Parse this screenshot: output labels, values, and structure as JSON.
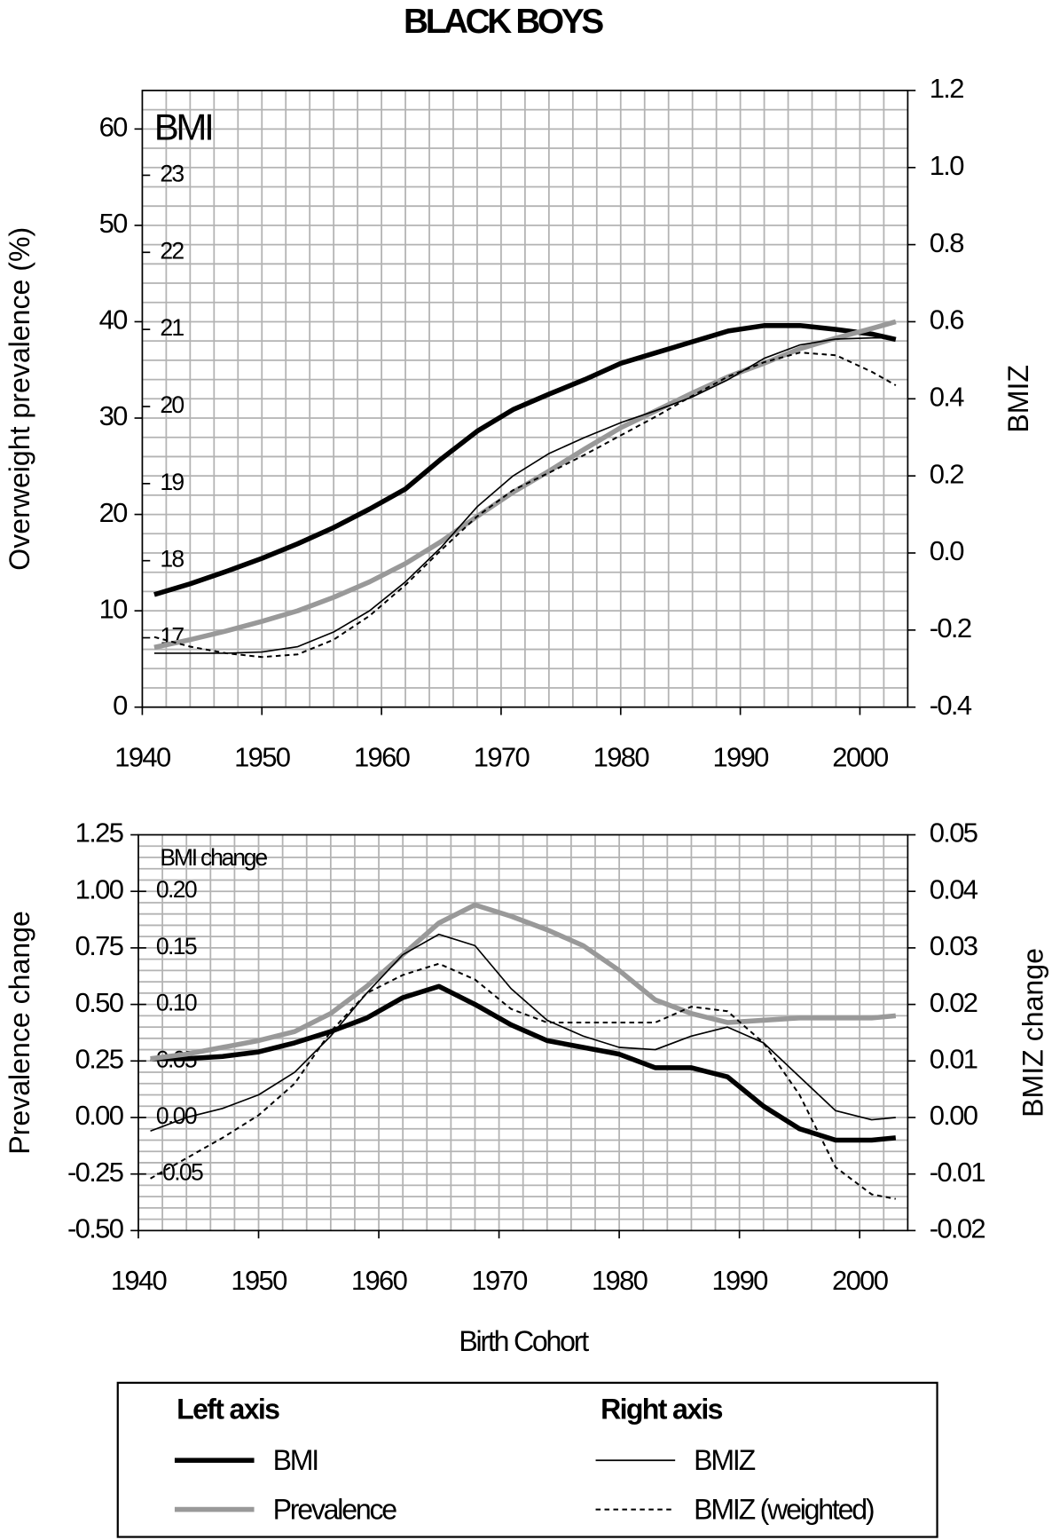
{
  "title": "BLACK BOYS",
  "legend": {
    "left_title": "Left axis",
    "right_title": "Right axis"
  },
  "chart_data": [
    {
      "type": "line",
      "ylabel": "Overweight prevalence (%)",
      "y2label": "BMIZ",
      "y3label": "BMI",
      "x": [
        1941,
        1944,
        1947,
        1950,
        1953,
        1956,
        1959,
        1962,
        1965,
        1968,
        1971,
        1974,
        1977,
        1980,
        1983,
        1986,
        1989,
        1992,
        1995,
        1998,
        2001,
        2003
      ],
      "xlim": [
        1940,
        2004
      ],
      "xticks": [
        1940,
        1950,
        1960,
        1970,
        1980,
        1990,
        2000
      ],
      "ylim": [
        0,
        64
      ],
      "yticks": [
        0,
        10,
        20,
        30,
        40,
        50,
        60
      ],
      "y2lim": [
        -0.4,
        1.2
      ],
      "y2ticks": [
        -0.4,
        -0.2,
        {
          "value": 0,
          "label": "0.0"
        },
        0.2,
        0.4,
        0.6,
        0.8,
        {
          "value": 1,
          "label": "1.0"
        },
        1.2
      ],
      "y3lim": [
        16.1,
        24.1
      ],
      "y3ticks": [
        17,
        18,
        19,
        20,
        21,
        22,
        23
      ],
      "grid": true,
      "grid_x_step": 2,
      "grid_y_step": 2,
      "series": [
        {
          "name": "BMI",
          "axis": "y3",
          "color": "#000000",
          "width": 5,
          "dash": false,
          "values": [
            17.56,
            17.7,
            17.86,
            18.03,
            18.22,
            18.43,
            18.67,
            18.93,
            19.32,
            19.68,
            19.96,
            20.16,
            20.35,
            20.56,
            20.7,
            20.84,
            20.98,
            21.05,
            21.05,
            21.0,
            20.94,
            20.87
          ]
        },
        {
          "name": "Prevalence",
          "axis": "y",
          "color": "#999999",
          "width": 5,
          "dash": false,
          "values": [
            6.2,
            7,
            7.9,
            8.9,
            10,
            11.4,
            13,
            14.9,
            17.2,
            19.8,
            22.3,
            24.5,
            26.8,
            29,
            30.8,
            32.6,
            34.3,
            35.7,
            37.2,
            38.3,
            39.3,
            40
          ]
        },
        {
          "name": "BMIZ",
          "axis": "y2",
          "color": "#000000",
          "width": 1.5,
          "dash": false,
          "values": [
            -0.26,
            -0.26,
            -0.26,
            -0.257,
            -0.243,
            -0.205,
            -0.15,
            -0.075,
            0.015,
            0.12,
            0.2,
            0.258,
            0.3,
            0.338,
            0.37,
            0.405,
            0.45,
            0.505,
            0.54,
            0.555,
            0.558,
            0.558
          ]
        },
        {
          "name": "BMIZ (weighted)",
          "axis": "y2",
          "color": "#000000",
          "width": 1.8,
          "dash": true,
          "values": [
            -0.218,
            -0.243,
            -0.26,
            -0.27,
            -0.263,
            -0.225,
            -0.163,
            -0.083,
            0.008,
            0.095,
            0.163,
            0.208,
            0.255,
            0.305,
            0.355,
            0.408,
            0.458,
            0.495,
            0.52,
            0.513,
            0.47,
            0.435
          ]
        }
      ]
    },
    {
      "type": "line",
      "xlabel": "Birth Cohort",
      "ylabel": "Prevalence change",
      "y2label": "BMIZ change",
      "y3label": "BMI change",
      "x": [
        1941,
        1944,
        1947,
        1950,
        1953,
        1956,
        1959,
        1962,
        1965,
        1968,
        1971,
        1974,
        1977,
        1980,
        1983,
        1986,
        1989,
        1992,
        1995,
        1998,
        2001,
        2003
      ],
      "xlim": [
        1940,
        2004
      ],
      "xticks": [
        1940,
        1950,
        1960,
        1970,
        1980,
        1990,
        2000
      ],
      "ylim": [
        -0.5,
        1.25
      ],
      "yticks": [
        {
          "value": -0.5,
          "label": "-0.50"
        },
        -0.25,
        {
          "value": 0,
          "label": "0.00"
        },
        0.25,
        {
          "value": 0.5,
          "label": "0.50"
        },
        0.75,
        {
          "value": 1,
          "label": "1.00"
        },
        1.25
      ],
      "y2lim": [
        -0.02,
        0.05
      ],
      "y2ticks": [
        -0.02,
        -0.01,
        {
          "value": 0,
          "label": "0.00"
        },
        0.01,
        0.02,
        0.03,
        0.04,
        0.05
      ],
      "y3lim": [
        -0.1,
        0.25
      ],
      "y3ticks": [
        -0.05,
        {
          "value": 0,
          "label": "0.00"
        },
        0.05,
        {
          "value": 0.1,
          "label": "0.10"
        },
        0.15,
        {
          "value": 0.2,
          "label": "0.20"
        }
      ],
      "grid": true,
      "grid_x_step": 2,
      "grid_y_step": 0.05,
      "series": [
        {
          "axis": "y3",
          "color": "#000000",
          "width": 5,
          "dash": false,
          "values": [
            0.052,
            0.052,
            0.054,
            0.058,
            0.066,
            0.076,
            0.088,
            0.106,
            0.116,
            0.1,
            0.082,
            0.068,
            0.062,
            0.056,
            0.044,
            0.044,
            0.036,
            0.01,
            -0.01,
            -0.02,
            -0.02,
            -0.018
          ]
        },
        {
          "axis": "y",
          "color": "#999999",
          "width": 5,
          "dash": false,
          "values": [
            0.26,
            0.28,
            0.31,
            0.34,
            0.38,
            0.46,
            0.58,
            0.72,
            0.86,
            0.94,
            0.89,
            0.83,
            0.76,
            0.65,
            0.52,
            0.46,
            0.42,
            0.43,
            0.44,
            0.44,
            0.44,
            0.45
          ]
        },
        {
          "axis": "y2",
          "color": "#000000",
          "width": 1.5,
          "dash": false,
          "values": [
            -0.0024,
            0,
            0.0016,
            0.004,
            0.008,
            0.0144,
            0.022,
            0.0288,
            0.0324,
            0.0304,
            0.0228,
            0.0172,
            0.0144,
            0.0124,
            0.012,
            0.0144,
            0.016,
            0.0132,
            0.0072,
            0.0012,
            -0.0004,
            0
          ]
        },
        {
          "axis": "y2",
          "color": "#000000",
          "width": 1.8,
          "dash": true,
          "values": [
            -0.0108,
            -0.0072,
            -0.0036,
            0.0004,
            0.006,
            0.0152,
            0.022,
            0.0252,
            0.0272,
            0.0244,
            0.0192,
            0.0168,
            0.0168,
            0.0168,
            0.0168,
            0.0196,
            0.0188,
            0.0132,
            0.004,
            -0.0088,
            -0.0136,
            -0.0144
          ]
        }
      ]
    }
  ]
}
